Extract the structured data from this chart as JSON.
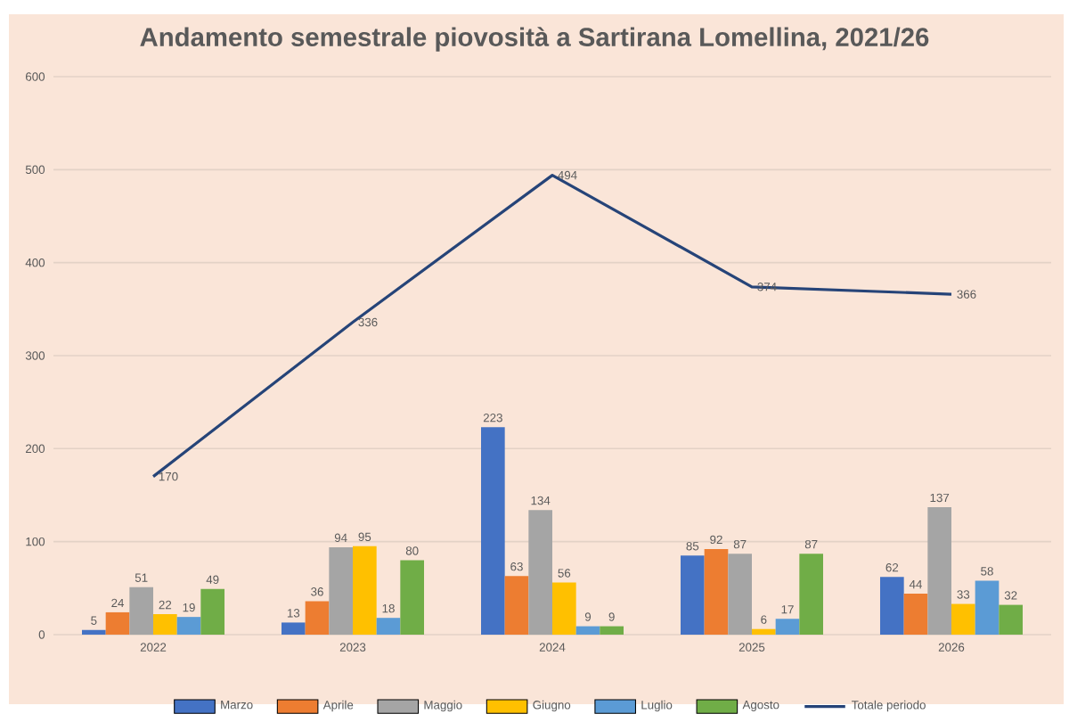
{
  "chart_data": {
    "type": "bar",
    "title": "Andamento semestrale piovosità a Sartirana Lomellina, 2021/26",
    "categories": [
      "2022",
      "2023",
      "2024",
      "2025",
      "2026"
    ],
    "series": [
      {
        "name": "Marzo",
        "color": "#4472c4",
        "values": [
          5,
          13,
          223,
          85,
          62
        ]
      },
      {
        "name": "Aprile",
        "color": "#ed7d31",
        "values": [
          24,
          36,
          63,
          92,
          44
        ]
      },
      {
        "name": "Maggio",
        "color": "#a5a5a5",
        "values": [
          51,
          94,
          134,
          87,
          137
        ]
      },
      {
        "name": "Giugno",
        "color": "#ffc000",
        "values": [
          22,
          95,
          56,
          6,
          33
        ]
      },
      {
        "name": "Luglio",
        "color": "#5b9bd5",
        "values": [
          19,
          18,
          9,
          17,
          58
        ]
      },
      {
        "name": "Agosto",
        "color": "#70ad47",
        "values": [
          49,
          80,
          9,
          87,
          32
        ]
      },
      {
        "name": "Totale periodo",
        "color": "#264478",
        "type": "line",
        "values": [
          170,
          336,
          494,
          374,
          366
        ]
      }
    ],
    "ylim": [
      0,
      600
    ],
    "yticks": [
      0,
      100,
      200,
      300,
      400,
      500,
      600
    ],
    "grid": "y",
    "legend": "bottom",
    "data_labels": true
  }
}
